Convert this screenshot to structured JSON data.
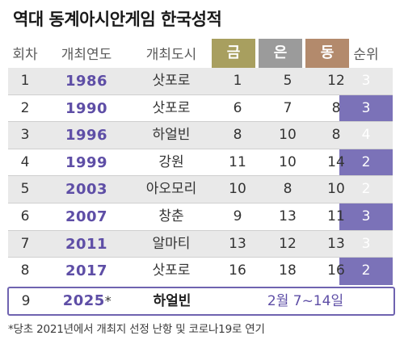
{
  "title": "역대 동계아시안게임 한국성적",
  "headers": {
    "round": "회차",
    "year": "개최연도",
    "city": "개최도시",
    "gold": "금",
    "silver": "은",
    "bronze": "동",
    "rank": "순위"
  },
  "colors": {
    "gold": "#a89f5f",
    "silver": "#9b9b9b",
    "bronze": "#b38a6c",
    "rank": "#7b72b8",
    "year_text": "#5e4ea6",
    "row_shade": "#e9e9e9"
  },
  "rows": [
    {
      "round": "1",
      "year": "1986",
      "city": "삿포로",
      "gold": "1",
      "silver": "5",
      "bronze": "12",
      "rank": "3"
    },
    {
      "round": "2",
      "year": "1990",
      "city": "삿포로",
      "gold": "6",
      "silver": "7",
      "bronze": "8",
      "rank": "3"
    },
    {
      "round": "3",
      "year": "1996",
      "city": "하얼빈",
      "gold": "8",
      "silver": "10",
      "bronze": "8",
      "rank": "4"
    },
    {
      "round": "4",
      "year": "1999",
      "city": "강원",
      "gold": "11",
      "silver": "10",
      "bronze": "14",
      "rank": "2"
    },
    {
      "round": "5",
      "year": "2003",
      "city": "아오모리",
      "gold": "10",
      "silver": "8",
      "bronze": "10",
      "rank": "2"
    },
    {
      "round": "6",
      "year": "2007",
      "city": "창춘",
      "gold": "9",
      "silver": "13",
      "bronze": "11",
      "rank": "3"
    },
    {
      "round": "7",
      "year": "2011",
      "city": "알마티",
      "gold": "13",
      "silver": "12",
      "bronze": "13",
      "rank": "3"
    },
    {
      "round": "8",
      "year": "2017",
      "city": "삿포로",
      "gold": "16",
      "silver": "18",
      "bronze": "16",
      "rank": "2"
    }
  ],
  "upcoming": {
    "round": "9",
    "year": "2025",
    "star": "*",
    "city": "하얼빈",
    "dates": "2월 7~14일"
  },
  "footnote": "*당초 2021년에서 개최지 선정 난항 및 코로나19로 연기"
}
